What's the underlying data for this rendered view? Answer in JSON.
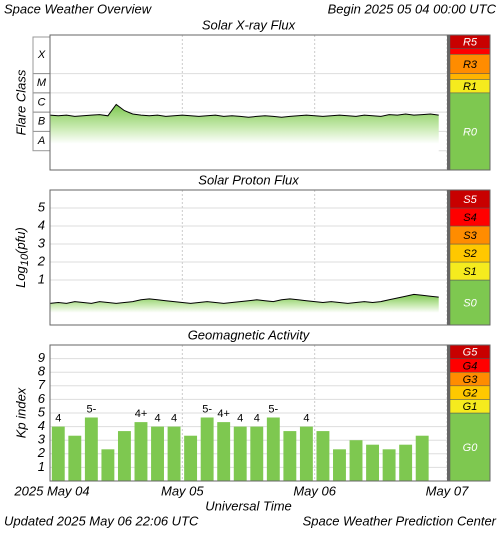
{
  "header": {
    "title": "Space Weather Overview",
    "begin": "Begin 2025 05 04 00:00 UTC"
  },
  "footer": {
    "updated": "Updated 2025 May 06 22:06 UTC",
    "credit": "Space Weather Prediction Center"
  },
  "chart_data": [
    {
      "type": "line",
      "title": "Solar X-ray Flux",
      "y_label": "Flare Class",
      "log": true,
      "ylim": [
        1e-09,
        0.01
      ],
      "xlim": [
        0,
        72
      ],
      "yticks": [
        {
          "value": 1e-08,
          "label": "A"
        },
        {
          "value": 1e-07,
          "label": "B"
        },
        {
          "value": 1e-06,
          "label": "C"
        },
        {
          "value": 1e-05,
          "label": "M"
        },
        {
          "value": 0.0001,
          "label": "X"
        }
      ],
      "x": [
        0,
        1.5,
        3,
        4.5,
        6,
        7.5,
        9,
        10.5,
        12,
        13.5,
        15,
        16.5,
        18,
        19.5,
        21,
        22.5,
        24,
        25.5,
        27,
        28.5,
        30,
        31.5,
        33,
        34.5,
        36,
        37.5,
        39,
        40.5,
        42,
        43.5,
        45,
        46.5,
        48,
        49.5,
        51,
        52.5,
        54,
        55.5,
        57,
        58.5,
        60,
        61.5,
        63,
        64.5,
        66,
        67.5,
        69,
        70.5
      ],
      "series": [
        {
          "color": "#000000",
          "values": [
            7e-07,
            6.5e-07,
            7e-07,
            6e-07,
            6.5e-07,
            7e-07,
            7.5e-07,
            6.5e-07,
            2.5e-06,
            1.2e-06,
            8e-07,
            7e-07,
            6.5e-07,
            7e-07,
            6e-07,
            6.5e-07,
            7e-07,
            6.5e-07,
            6e-07,
            6.5e-07,
            7e-07,
            6e-07,
            6.5e-07,
            6e-07,
            5.5e-07,
            6e-07,
            6.5e-07,
            6e-07,
            5.5e-07,
            6e-07,
            6.5e-07,
            7e-07,
            6.5e-07,
            6e-07,
            6.5e-07,
            7e-07,
            6.5e-07,
            6e-07,
            7e-07,
            6.5e-07,
            6e-07,
            7.5e-07,
            7e-07,
            8e-07,
            7e-07,
            7.5e-07,
            8e-07,
            7e-07
          ]
        }
      ],
      "scale": [
        {
          "label": "R0",
          "from": 1e-09,
          "to": 1e-05,
          "color": "#7ec850"
        },
        {
          "label": "R1",
          "from": 1e-05,
          "to": 5e-05,
          "color": "#f5eb1e"
        },
        {
          "label": null,
          "from": 5e-05,
          "to": 0.0001,
          "color": "#ffb400"
        },
        {
          "label": "R3",
          "from": 0.0001,
          "to": 0.001,
          "color": "#ff8c00"
        },
        {
          "label": null,
          "from": 0.001,
          "to": 0.002,
          "color": "#ff0000"
        },
        {
          "label": "R5",
          "from": 0.002,
          "to": 0.01,
          "color": "#c80000"
        }
      ]
    },
    {
      "type": "line",
      "title": "Solar Proton Flux",
      "y_label": [
        "Log",
        "10",
        "(pfu)"
      ],
      "ylim": [
        -1.5,
        6
      ],
      "xlim": [
        0,
        72
      ],
      "yticks": [
        1,
        2,
        3,
        4,
        5
      ],
      "x": [
        0,
        1.5,
        3,
        4.5,
        6,
        7.5,
        9,
        10.5,
        12,
        13.5,
        15,
        16.5,
        18,
        19.5,
        21,
        22.5,
        24,
        25.5,
        27,
        28.5,
        30,
        31.5,
        33,
        34.5,
        36,
        37.5,
        39,
        40.5,
        42,
        43.5,
        45,
        46.5,
        48,
        49.5,
        51,
        52.5,
        54,
        55.5,
        57,
        58.5,
        60,
        61.5,
        63,
        64.5,
        66,
        67.5,
        69,
        70.5
      ],
      "series": [
        {
          "color": "#000000",
          "values": [
            -0.3,
            -0.25,
            -0.3,
            -0.2,
            -0.25,
            -0.3,
            -0.2,
            -0.25,
            -0.3,
            -0.25,
            -0.2,
            -0.1,
            -0.05,
            -0.1,
            -0.15,
            -0.2,
            -0.25,
            -0.3,
            -0.25,
            -0.2,
            -0.25,
            -0.3,
            -0.25,
            -0.2,
            -0.15,
            -0.1,
            -0.15,
            -0.2,
            -0.1,
            -0.05,
            -0.1,
            -0.15,
            -0.2,
            -0.25,
            -0.2,
            -0.25,
            -0.3,
            -0.25,
            -0.2,
            -0.25,
            -0.2,
            -0.1,
            0.0,
            0.1,
            0.2,
            0.15,
            0.1,
            0.05
          ]
        }
      ],
      "scale": [
        {
          "label": "S0",
          "from": -1.5,
          "to": 1,
          "color": "#7ec850"
        },
        {
          "label": "S1",
          "from": 1,
          "to": 2,
          "color": "#f5eb1e"
        },
        {
          "label": "S2",
          "from": 2,
          "to": 3,
          "color": "#ffc800"
        },
        {
          "label": "S3",
          "from": 3,
          "to": 4,
          "color": "#ff8c00"
        },
        {
          "label": "S4",
          "from": 4,
          "to": 5,
          "color": "#ff0000"
        },
        {
          "label": "S5",
          "from": 5,
          "to": 6,
          "color": "#c80000"
        }
      ]
    },
    {
      "type": "bar",
      "title": "Geomagnetic Activity",
      "y_label": "Kp index",
      "x_label": "Universal Time",
      "ylim": [
        0,
        10
      ],
      "xlim": [
        0,
        72
      ],
      "yticks": [
        1,
        2,
        3,
        4,
        5,
        6,
        7,
        8,
        9
      ],
      "xticks": [
        {
          "value": 0,
          "label": "2025 May 04"
        },
        {
          "value": 24,
          "label": "May 05"
        },
        {
          "value": 48,
          "label": "May 06"
        },
        {
          "value": 72,
          "label": "May 07"
        }
      ],
      "color": "#7ec850",
      "x": [
        1.5,
        4.5,
        7.5,
        10.5,
        13.5,
        16.5,
        19.5,
        22.5,
        25.5,
        28.5,
        31.5,
        34.5,
        37.5,
        40.5,
        43.5,
        46.5,
        49.5,
        52.5,
        55.5,
        58.5,
        61.5,
        64.5,
        67.5
      ],
      "values": [
        4,
        3.33,
        4.67,
        2.33,
        3.67,
        4.33,
        4,
        4,
        3.33,
        4.67,
        4.33,
        4,
        4,
        4.67,
        3.67,
        4,
        3.67,
        2.33,
        3,
        2.67,
        2.33,
        2.67,
        3.33
      ],
      "value_labels": [
        "4",
        null,
        "5-",
        null,
        null,
        "4+",
        "4",
        "4",
        null,
        "5-",
        "4+",
        "4",
        "4",
        "5-",
        null,
        "4",
        null,
        null,
        null,
        null,
        null,
        null,
        null
      ],
      "scale": [
        {
          "label": "G0",
          "from": 0,
          "to": 5,
          "color": "#7ec850"
        },
        {
          "label": "G1",
          "from": 5,
          "to": 6,
          "color": "#f5eb1e"
        },
        {
          "label": "G2",
          "from": 6,
          "to": 7,
          "color": "#ffc800"
        },
        {
          "label": "G3",
          "from": 7,
          "to": 8,
          "color": "#ff8c00"
        },
        {
          "label": "G4",
          "from": 8,
          "to": 9,
          "color": "#ff0000"
        },
        {
          "label": "G5",
          "from": 9,
          "to": 10,
          "color": "#c80000"
        }
      ]
    }
  ]
}
